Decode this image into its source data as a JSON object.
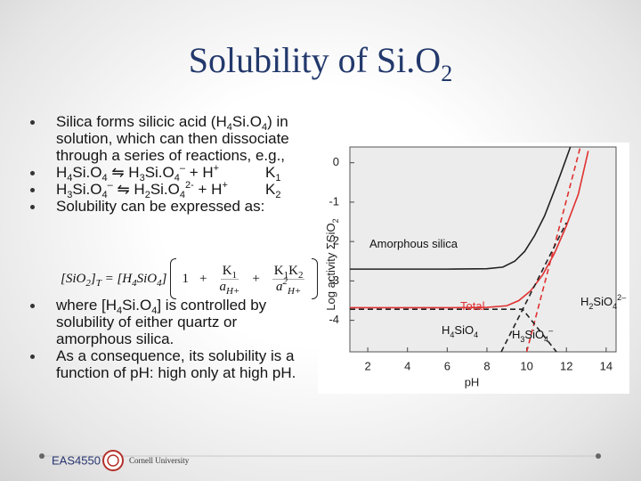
{
  "title": {
    "text": "Solubility of Si.O",
    "sub": "2"
  },
  "bullets": [
    {
      "runs": [
        {
          "text": "Silica forms silicic acid (H"
        },
        {
          "text": "4",
          "style": "sub"
        },
        {
          "text": "Si.O"
        },
        {
          "text": "4",
          "style": "sub"
        },
        {
          "text": ") in solution, which can then dissociate through a series of reactions, e.g.,"
        }
      ]
    },
    {
      "runs": [
        {
          "text": "H"
        },
        {
          "text": "4",
          "style": "sub"
        },
        {
          "text": "Si.O"
        },
        {
          "text": "4",
          "style": "sub"
        },
        {
          "text": " ⇋ H"
        },
        {
          "text": "3",
          "style": "sub"
        },
        {
          "text": "Si.O"
        },
        {
          "text": "4",
          "style": "sub"
        },
        {
          "text": "–",
          "style": "sup"
        },
        {
          "text": " + H"
        },
        {
          "text": "+",
          "style": "sup"
        }
      ],
      "k": [
        {
          "text": "K"
        },
        {
          "text": "1",
          "style": "sub"
        }
      ]
    },
    {
      "runs": [
        {
          "text": "H"
        },
        {
          "text": "3",
          "style": "sub"
        },
        {
          "text": "Si.O"
        },
        {
          "text": "4",
          "style": "sub"
        },
        {
          "text": "–",
          "style": "sup"
        },
        {
          "text": " ⇋ H"
        },
        {
          "text": "2",
          "style": "sub"
        },
        {
          "text": "Si.O"
        },
        {
          "text": "4",
          "style": "sub"
        },
        {
          "text": "2-",
          "style": "sup"
        },
        {
          "text": " + H"
        },
        {
          "text": "+",
          "style": "sup"
        }
      ],
      "k": [
        {
          "text": "K"
        },
        {
          "text": "2",
          "style": "sub"
        }
      ]
    },
    {
      "runs": [
        {
          "text": "Solubility can be expressed as:"
        }
      ]
    },
    {
      "runs": [
        {
          "text": "where [H"
        },
        {
          "text": "4",
          "style": "sub"
        },
        {
          "text": "Si.O"
        },
        {
          "text": "4",
          "style": "sub"
        },
        {
          "text": "] is controlled by solubility of either quartz or amorphous silica."
        }
      ]
    },
    {
      "runs": [
        {
          "text": "As a consequence, its solubility is a function of pH: high only at high pH."
        }
      ]
    }
  ],
  "equation": {
    "left": [
      {
        "text": "[SiO"
      },
      {
        "text": "2",
        "style": "sub"
      },
      {
        "text": "]"
      },
      {
        "text": "T",
        "style": "sub"
      },
      {
        "text": " = ["
      },
      {
        "text": "H"
      },
      {
        "text": "4",
        "style": "sub"
      },
      {
        "text": "SiO"
      },
      {
        "text": "4",
        "style": "sub"
      },
      {
        "text": "]"
      }
    ],
    "one": "1",
    "plus": "+",
    "frac1": {
      "num": [
        {
          "text": "K"
        },
        {
          "text": "1",
          "style": "sub"
        }
      ],
      "den": [
        {
          "text": "a"
        },
        {
          "text": "H+",
          "style": "sub"
        }
      ]
    },
    "frac2": {
      "num": [
        {
          "text": "K"
        },
        {
          "text": "1",
          "style": "sub"
        },
        {
          "text": "K"
        },
        {
          "text": "2",
          "style": "sub"
        }
      ],
      "den": [
        {
          "text": "a"
        },
        {
          "text": "2",
          "style": "sup"
        },
        {
          "text": "H+",
          "style": "sub"
        }
      ]
    }
  },
  "chart_data": {
    "type": "line",
    "xlabel": "pH",
    "ylabel": [
      {
        "text": "Log activity ΣSiO"
      },
      {
        "text": "2",
        "style": "sub"
      }
    ],
    "xlim": [
      1.1,
      14.5
    ],
    "xticks": [
      2,
      4,
      6,
      8,
      10,
      12,
      14
    ],
    "ylim": [
      -4.8,
      0.4
    ],
    "yticks": [
      0,
      -1,
      -2,
      -3,
      -4
    ],
    "series": [
      {
        "color": "#222222",
        "dash": false,
        "x": [
          1.1,
          4,
          6,
          8,
          8.8,
          9.4,
          9.9,
          10.4,
          10.9,
          11.4,
          11.7,
          12.2
        ],
        "values": [
          -2.7,
          -2.7,
          -2.7,
          -2.69,
          -2.65,
          -2.5,
          -2.25,
          -1.85,
          -1.35,
          -0.7,
          -0.3,
          0.4
        ]
      },
      {
        "color": "#e03030",
        "dash": false,
        "x": [
          1.1,
          4,
          6,
          8,
          9,
          9.6,
          10.2,
          10.8,
          11.4,
          12,
          12.6,
          13.1
        ],
        "values": [
          -3.68,
          -3.68,
          -3.68,
          -3.67,
          -3.63,
          -3.5,
          -3.25,
          -2.85,
          -2.3,
          -1.6,
          -0.8,
          0.3
        ]
      },
      {
        "color": "#e03030",
        "dash": true,
        "x": [
          10,
          12.7
        ],
        "values": [
          -4.8,
          0.4
        ]
      },
      {
        "color": "#222222",
        "dash": true,
        "x": [
          1.1,
          9.8,
          11.5
        ],
        "values": [
          -3.72,
          -3.72,
          -4.8
        ]
      },
      {
        "color": "#222222",
        "dash": true,
        "x": [
          8.72,
          12.0
        ],
        "values": [
          -4.8,
          -1.52
        ]
      }
    ],
    "annotations": [
      {
        "color": "#111111",
        "runs": [
          {
            "text": "Amorphous silica"
          }
        ]
      },
      {
        "color": "#e03030",
        "runs": [
          {
            "text": "Total"
          }
        ]
      },
      {
        "color": "#111111",
        "runs": [
          {
            "text": "H"
          },
          {
            "text": "2",
            "style": "sub"
          },
          {
            "text": "SiO"
          },
          {
            "text": "4",
            "style": "sub"
          },
          {
            "text": "2–",
            "style": "sup"
          }
        ]
      },
      {
        "color": "#111111",
        "runs": [
          {
            "text": "H"
          },
          {
            "text": "4",
            "style": "sub"
          },
          {
            "text": "SiO"
          },
          {
            "text": "4",
            "style": "sub"
          }
        ]
      },
      {
        "color": "#111111",
        "runs": [
          {
            "text": "H"
          },
          {
            "text": "3",
            "style": "sub"
          },
          {
            "text": "SiO"
          },
          {
            "text": "4",
            "style": "sub"
          },
          {
            "text": "–",
            "style": "sup"
          }
        ]
      }
    ]
  },
  "footer": {
    "course": "EAS4550",
    "university": "Cornell University"
  }
}
